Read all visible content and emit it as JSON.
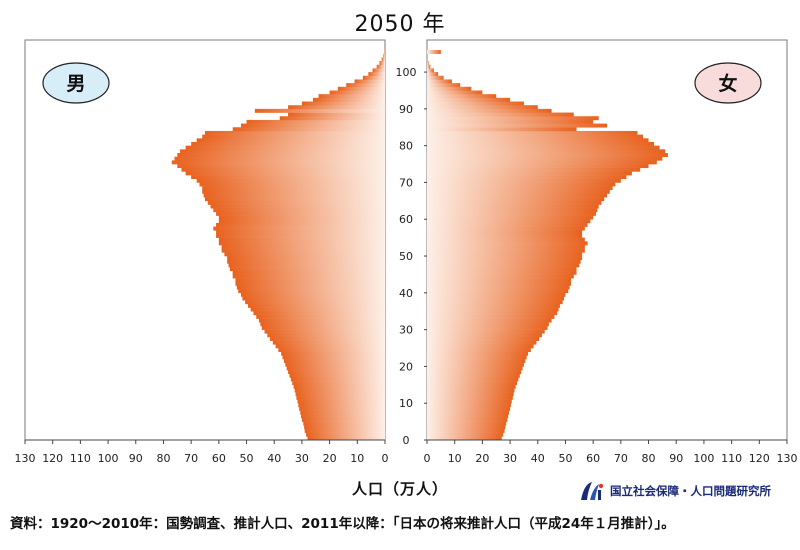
{
  "title": "2050 年",
  "chart_data": {
    "type": "bar",
    "orientation": "horizontal-pyramid",
    "title": "2050 年",
    "xlabel": "人口（万人）",
    "xlim": [
      0,
      130
    ],
    "ylim": [
      0,
      105
    ],
    "left_label": "男",
    "right_label": "女",
    "x_ticks": [
      0,
      10,
      20,
      30,
      40,
      50,
      60,
      70,
      80,
      90,
      100,
      110,
      120,
      130
    ],
    "y_ticks": [
      0,
      10,
      20,
      30,
      40,
      50,
      60,
      70,
      80,
      90,
      100
    ],
    "ages": [
      0,
      1,
      2,
      3,
      4,
      5,
      6,
      7,
      8,
      9,
      10,
      11,
      12,
      13,
      14,
      15,
      16,
      17,
      18,
      19,
      20,
      21,
      22,
      23,
      24,
      25,
      26,
      27,
      28,
      29,
      30,
      31,
      32,
      33,
      34,
      35,
      36,
      37,
      38,
      39,
      40,
      41,
      42,
      43,
      44,
      45,
      46,
      47,
      48,
      49,
      50,
      51,
      52,
      53,
      54,
      55,
      56,
      57,
      58,
      59,
      60,
      61,
      62,
      63,
      64,
      65,
      66,
      67,
      68,
      69,
      70,
      71,
      72,
      73,
      74,
      75,
      76,
      77,
      78,
      79,
      80,
      81,
      82,
      83,
      84,
      85,
      86,
      87,
      88,
      89,
      90,
      91,
      92,
      93,
      94,
      95,
      96,
      97,
      98,
      99,
      100,
      101,
      102,
      103,
      104,
      105
    ],
    "series": [
      {
        "name": "男",
        "values": [
          28,
          28.5,
          29,
          29.2,
          29.5,
          30,
          30.3,
          30.6,
          31,
          31.3,
          31.6,
          32,
          32.3,
          32.6,
          33,
          33.5,
          34,
          34.5,
          35,
          35.5,
          36,
          36.5,
          37,
          37.5,
          38.5,
          39.5,
          40.5,
          41.5,
          42.5,
          43.5,
          44.5,
          45,
          45.5,
          46.5,
          47.5,
          48.5,
          49.5,
          50.5,
          51.5,
          52,
          53,
          53.5,
          54,
          54,
          55,
          55,
          56,
          56.5,
          57,
          57,
          58,
          59,
          59,
          60,
          60,
          61,
          61,
          62,
          61,
          60,
          60,
          61,
          62,
          63,
          64,
          65,
          65.5,
          66,
          66,
          67,
          68,
          70,
          72,
          73.5,
          75,
          77,
          76,
          75,
          74,
          72,
          70,
          68,
          66,
          65,
          55,
          52,
          50,
          38,
          35,
          47,
          35,
          30,
          26,
          24,
          20,
          17,
          14,
          11,
          8,
          6,
          4.5,
          3,
          2,
          1.2,
          0.6,
          0.3
        ]
      },
      {
        "name": "女",
        "values": [
          27,
          27.5,
          28,
          28.3,
          28.6,
          29,
          29.3,
          29.6,
          30,
          30.3,
          30.6,
          31,
          31.3,
          31.6,
          32,
          32.5,
          33,
          33.5,
          34,
          34.5,
          35,
          35.5,
          36,
          36.5,
          37.5,
          38.5,
          39.5,
          40.5,
          41.5,
          42.5,
          43.5,
          44,
          45,
          46,
          47,
          47.5,
          48,
          49,
          49.5,
          50,
          51,
          51.5,
          52,
          52,
          53,
          54,
          54,
          55,
          55.5,
          56,
          56,
          57,
          57,
          58,
          57,
          56,
          56,
          57,
          58,
          59,
          60,
          61,
          61.5,
          62,
          63,
          64,
          65,
          66,
          67,
          68,
          70,
          72,
          74,
          77,
          80,
          83,
          85,
          87,
          86,
          84,
          82,
          80,
          78,
          76,
          54,
          65,
          60,
          62,
          53,
          45,
          40,
          35,
          30,
          25,
          20,
          16,
          12,
          9,
          6,
          4,
          2.5,
          1.2,
          0.6,
          0.3,
          0,
          5
        ]
      }
    ],
    "colors": {
      "bar_outer": "#e8621f",
      "bar_inner": "#fbe5d6",
      "badge_male": "#d7eef8",
      "badge_female": "#f8dcdc"
    }
  },
  "source_text": "資料：1920～2010年：国勢調査、推計人口、2011年以降：「日本の将来推計人口（平成24年１月推計）」。",
  "logo": {
    "text": "国立社会保障・人口問題研究所",
    "icon": "ipss-logo-icon"
  }
}
